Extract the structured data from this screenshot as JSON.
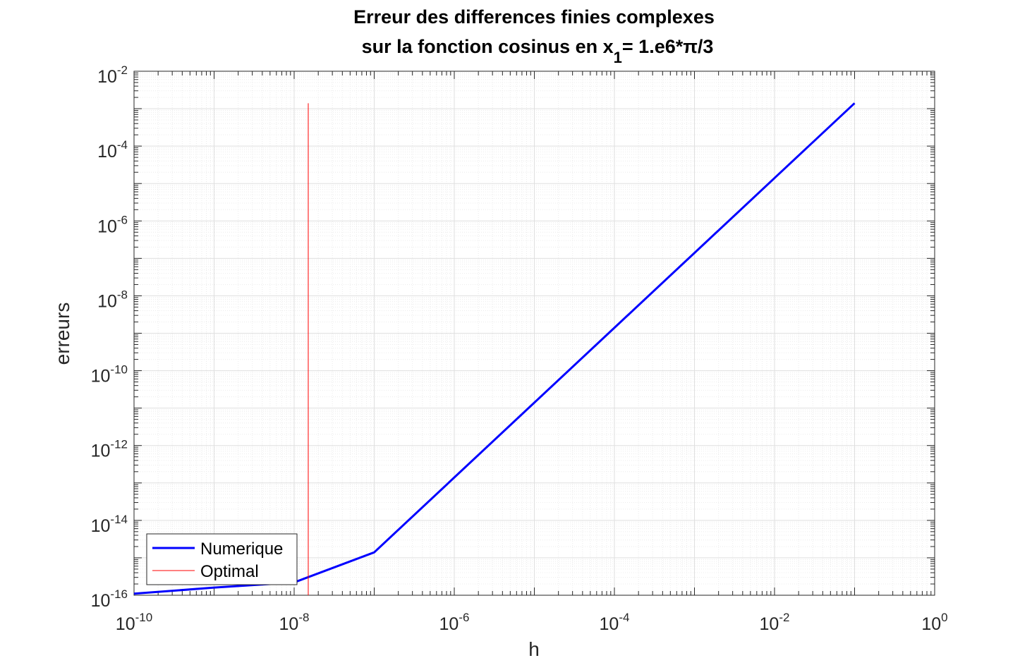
{
  "chart_data": {
    "type": "line",
    "title_lines": [
      "Erreur des differences finies complexes",
      "sur la fonction cosinus en x"
    ],
    "title_subscript": "1",
    "title_suffix": "= 1.e6*π/3",
    "xlabel": "h",
    "ylabel": "erreurs",
    "xscale": "log",
    "yscale": "log",
    "xlim": [
      1e-10,
      1
    ],
    "ylim": [
      1e-16,
      0.01
    ],
    "x_ticks": [
      {
        "value": 1e-10,
        "base": "10",
        "exp": "-10"
      },
      {
        "value": 1e-08,
        "base": "10",
        "exp": "-8"
      },
      {
        "value": 1e-06,
        "base": "10",
        "exp": "-6"
      },
      {
        "value": 0.0001,
        "base": "10",
        "exp": "-4"
      },
      {
        "value": 0.01,
        "base": "10",
        "exp": "-2"
      },
      {
        "value": 1,
        "base": "10",
        "exp": "0"
      }
    ],
    "y_ticks": [
      {
        "value": 1e-16,
        "base": "10",
        "exp": "-16"
      },
      {
        "value": 1e-14,
        "base": "10",
        "exp": "-14"
      },
      {
        "value": 1e-12,
        "base": "10",
        "exp": "-12"
      },
      {
        "value": 1e-10,
        "base": "10",
        "exp": "-10"
      },
      {
        "value": 1e-08,
        "base": "10",
        "exp": "-8"
      },
      {
        "value": 1e-06,
        "base": "10",
        "exp": "-6"
      },
      {
        "value": 0.0001,
        "base": "10",
        "exp": "-4"
      },
      {
        "value": 0.01,
        "base": "10",
        "exp": "-2"
      }
    ],
    "grid": true,
    "minor_grid": true,
    "legend_position": "bottom-left",
    "series": [
      {
        "name": "Numerique",
        "color": "#0000ff",
        "x": [
          1e-10,
          1e-09,
          1e-08,
          1e-07,
          1e-06,
          1e-05,
          0.0001,
          0.001,
          0.01,
          0.1
        ],
        "y": [
          1.1e-16,
          1.6e-16,
          2.2e-16,
          1.4e-15,
          1.4e-13,
          1.4e-11,
          1.4e-09,
          1.4e-07,
          1.4e-05,
          0.0014
        ]
      },
      {
        "name": "Optimal",
        "color": "#ff0000",
        "x": [
          1.5e-08,
          1.5e-08
        ],
        "y": [
          1e-16,
          0.0014
        ]
      }
    ]
  }
}
